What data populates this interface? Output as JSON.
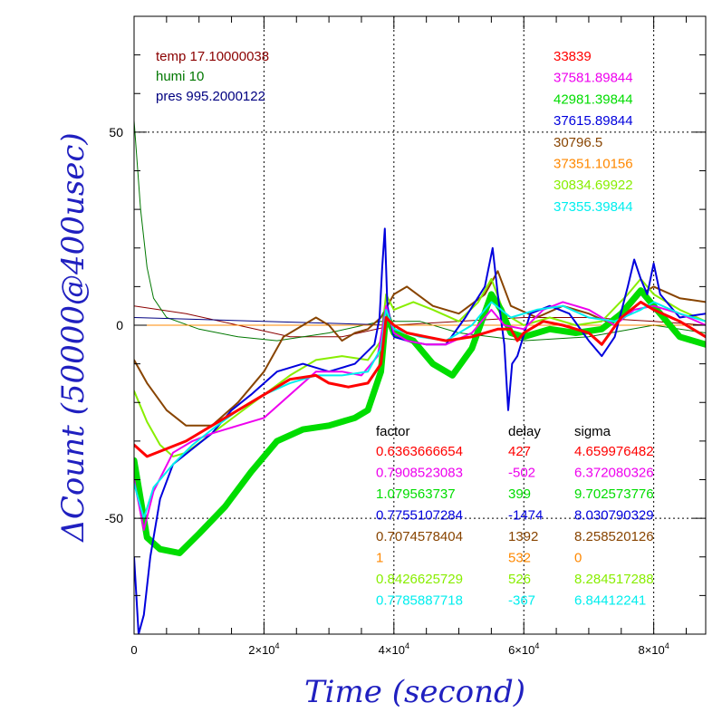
{
  "chart_data": {
    "type": "line",
    "xlabel": "Time (second)",
    "ylabel": "ΔCount (50000@400usec)",
    "xlim": [
      0,
      88000
    ],
    "ylim": [
      -80,
      80
    ],
    "x_ticks": [
      {
        "value": 0,
        "base": "0",
        "exp": ""
      },
      {
        "value": 20000,
        "base": "2×10",
        "exp": "4"
      },
      {
        "value": 40000,
        "base": "4×10",
        "exp": "4"
      },
      {
        "value": 60000,
        "base": "6×10",
        "exp": "4"
      },
      {
        "value": 80000,
        "base": "8×10",
        "exp": "4"
      }
    ],
    "y_ticks": [
      {
        "value": 50,
        "label": "50"
      },
      {
        "value": 0,
        "label": "0"
      },
      {
        "value": -50,
        "label": "-50"
      }
    ],
    "grid": true,
    "env_series": [
      {
        "label": "temp 17.10000038",
        "color": "#8b0000",
        "points": [
          [
            0,
            5
          ],
          [
            8000,
            3
          ],
          [
            16000,
            0
          ],
          [
            24000,
            -3
          ],
          [
            32000,
            -3
          ],
          [
            40000,
            0
          ],
          [
            50000,
            1
          ],
          [
            60000,
            2
          ],
          [
            70000,
            2
          ],
          [
            80000,
            1
          ],
          [
            88000,
            0
          ]
        ]
      },
      {
        "label": "humi 10",
        "color": "#007700",
        "points": [
          [
            0,
            53
          ],
          [
            1000,
            30
          ],
          [
            2000,
            15
          ],
          [
            3000,
            7
          ],
          [
            5000,
            2
          ],
          [
            10000,
            -1
          ],
          [
            16000,
            -3
          ],
          [
            22000,
            -4
          ],
          [
            30000,
            -2
          ],
          [
            38000,
            1
          ],
          [
            44000,
            1
          ],
          [
            50000,
            -2
          ],
          [
            60000,
            -4
          ],
          [
            70000,
            -3
          ],
          [
            80000,
            0
          ],
          [
            88000,
            -2
          ]
        ]
      },
      {
        "label": "pres 995.2000122",
        "color": "#000080",
        "points": [
          [
            0,
            2
          ],
          [
            20000,
            1
          ],
          [
            40000,
            0
          ],
          [
            60000,
            0
          ],
          [
            88000,
            0
          ]
        ]
      }
    ],
    "series_table_headers": [
      "factor",
      "delay",
      "sigma"
    ],
    "series": [
      {
        "name": "33839",
        "color": "#ff0000",
        "factor": "0.6363666654",
        "delay": "427",
        "sigma": "4.659976482",
        "width": 3,
        "points": [
          [
            0,
            -31
          ],
          [
            2000,
            -34
          ],
          [
            5000,
            -32
          ],
          [
            8000,
            -30
          ],
          [
            12000,
            -26
          ],
          [
            16000,
            -22
          ],
          [
            20000,
            -18
          ],
          [
            24000,
            -14
          ],
          [
            28000,
            -13
          ],
          [
            30000,
            -15
          ],
          [
            33000,
            -16
          ],
          [
            36000,
            -15
          ],
          [
            38000,
            -10
          ],
          [
            38800,
            2
          ],
          [
            40000,
            0
          ],
          [
            42000,
            -2
          ],
          [
            45000,
            -3
          ],
          [
            48000,
            -4
          ],
          [
            52000,
            -3
          ],
          [
            56000,
            -1
          ],
          [
            58000,
            -1
          ],
          [
            59000,
            -4
          ],
          [
            60000,
            -2
          ],
          [
            63000,
            1
          ],
          [
            66000,
            0
          ],
          [
            70000,
            -2
          ],
          [
            72000,
            -5
          ],
          [
            75000,
            2
          ],
          [
            78000,
            6
          ],
          [
            80000,
            4
          ],
          [
            84000,
            1
          ],
          [
            88000,
            -3
          ]
        ]
      },
      {
        "name": "37581.89844",
        "color": "#ee00ee",
        "factor": "0.7908523083",
        "delay": "-502",
        "sigma": "6.372080326",
        "width": 2,
        "points": [
          [
            0,
            -40
          ],
          [
            1500,
            -53
          ],
          [
            3000,
            -43
          ],
          [
            6000,
            -33
          ],
          [
            9000,
            -30
          ],
          [
            12000,
            -28
          ],
          [
            16000,
            -26
          ],
          [
            20000,
            -24
          ],
          [
            24000,
            -18
          ],
          [
            28000,
            -12
          ],
          [
            32000,
            -12
          ],
          [
            35000,
            -13
          ],
          [
            37500,
            -8
          ],
          [
            38800,
            5
          ],
          [
            40000,
            -2
          ],
          [
            42000,
            -4
          ],
          [
            45000,
            -5
          ],
          [
            48000,
            -5
          ],
          [
            52000,
            -2
          ],
          [
            55000,
            4
          ],
          [
            57000,
            0
          ],
          [
            60000,
            -1
          ],
          [
            63000,
            4
          ],
          [
            66000,
            6
          ],
          [
            70000,
            4
          ],
          [
            74000,
            0
          ],
          [
            77000,
            4
          ],
          [
            80000,
            5
          ],
          [
            84000,
            3
          ],
          [
            88000,
            0
          ]
        ]
      },
      {
        "name": "42981.39844",
        "color": "#00dd00",
        "factor": "1.079563737",
        "delay": "399",
        "sigma": "9.702573776",
        "width": 7,
        "points": [
          [
            0,
            -35
          ],
          [
            1000,
            -45
          ],
          [
            2000,
            -55
          ],
          [
            4000,
            -58
          ],
          [
            7000,
            -59
          ],
          [
            10000,
            -54
          ],
          [
            14000,
            -47
          ],
          [
            18000,
            -38
          ],
          [
            22000,
            -30
          ],
          [
            26000,
            -27
          ],
          [
            30000,
            -26
          ],
          [
            34000,
            -24
          ],
          [
            36000,
            -22
          ],
          [
            38000,
            -12
          ],
          [
            38800,
            3
          ],
          [
            40000,
            -2
          ],
          [
            43000,
            -4
          ],
          [
            46000,
            -10
          ],
          [
            49000,
            -13
          ],
          [
            52000,
            -6
          ],
          [
            55000,
            8
          ],
          [
            56500,
            4
          ],
          [
            58000,
            -2
          ],
          [
            60000,
            -3
          ],
          [
            64000,
            -1
          ],
          [
            68000,
            -2
          ],
          [
            72000,
            -1
          ],
          [
            75000,
            3
          ],
          [
            78000,
            9
          ],
          [
            80000,
            5
          ],
          [
            84000,
            -3
          ],
          [
            88000,
            -5
          ]
        ]
      },
      {
        "name": "37615.89844",
        "color": "#0000dd",
        "factor": "0.7755107284",
        "delay": "-1474",
        "sigma": "8.030790329",
        "width": 2,
        "points": [
          [
            0,
            -60
          ],
          [
            700,
            -80
          ],
          [
            1500,
            -75
          ],
          [
            2500,
            -60
          ],
          [
            4000,
            -45
          ],
          [
            6000,
            -36
          ],
          [
            9000,
            -32
          ],
          [
            12000,
            -28
          ],
          [
            15000,
            -22
          ],
          [
            18000,
            -18
          ],
          [
            22000,
            -12
          ],
          [
            26000,
            -10
          ],
          [
            30000,
            -12
          ],
          [
            34000,
            -10
          ],
          [
            37000,
            -5
          ],
          [
            37800,
            2
          ],
          [
            38200,
            15
          ],
          [
            38600,
            25
          ],
          [
            39000,
            5
          ],
          [
            40000,
            -3
          ],
          [
            42000,
            -4
          ],
          [
            45000,
            -5
          ],
          [
            48000,
            -5
          ],
          [
            51000,
            2
          ],
          [
            54000,
            10
          ],
          [
            55200,
            20
          ],
          [
            56000,
            8
          ],
          [
            57000,
            -5
          ],
          [
            57600,
            -22
          ],
          [
            58200,
            -10
          ],
          [
            59000,
            -8
          ],
          [
            61000,
            3
          ],
          [
            64000,
            5
          ],
          [
            67000,
            3
          ],
          [
            70000,
            -4
          ],
          [
            72000,
            -8
          ],
          [
            74000,
            -3
          ],
          [
            76000,
            10
          ],
          [
            77000,
            17
          ],
          [
            78000,
            12
          ],
          [
            79000,
            8
          ],
          [
            80000,
            16
          ],
          [
            81000,
            8
          ],
          [
            84000,
            2
          ],
          [
            88000,
            3
          ]
        ]
      },
      {
        "name": "30796.5",
        "color": "#884400",
        "factor": "0.7074578404",
        "delay": "1392",
        "sigma": "8.258520126",
        "width": 2,
        "points": [
          [
            0,
            -9
          ],
          [
            2000,
            -15
          ],
          [
            5000,
            -22
          ],
          [
            8000,
            -26
          ],
          [
            12000,
            -26
          ],
          [
            16000,
            -20
          ],
          [
            20000,
            -12
          ],
          [
            23000,
            -3
          ],
          [
            26000,
            0
          ],
          [
            28000,
            2
          ],
          [
            30000,
            0
          ],
          [
            32000,
            -4
          ],
          [
            34000,
            -2
          ],
          [
            36000,
            -1
          ],
          [
            38000,
            2
          ],
          [
            40000,
            8
          ],
          [
            42000,
            10
          ],
          [
            46000,
            5
          ],
          [
            50000,
            3
          ],
          [
            54000,
            8
          ],
          [
            56000,
            14
          ],
          [
            58000,
            5
          ],
          [
            62000,
            2
          ],
          [
            66000,
            5
          ],
          [
            70000,
            3
          ],
          [
            74000,
            0
          ],
          [
            78000,
            8
          ],
          [
            80000,
            10
          ],
          [
            84000,
            7
          ],
          [
            88000,
            6
          ]
        ]
      },
      {
        "name": "37351.10156",
        "color": "#ff8800",
        "factor": "1",
        "delay": "532",
        "sigma": "0",
        "width": 1,
        "points": [
          [
            0,
            0
          ],
          [
            88000,
            0
          ]
        ]
      },
      {
        "name": "30834.69922",
        "color": "#88ee00",
        "factor": "0.8426625729",
        "delay": "526",
        "sigma": "8.284517288",
        "width": 2,
        "points": [
          [
            0,
            -17
          ],
          [
            2000,
            -25
          ],
          [
            4000,
            -31
          ],
          [
            6000,
            -34
          ],
          [
            8000,
            -33
          ],
          [
            12000,
            -28
          ],
          [
            16000,
            -23
          ],
          [
            20000,
            -18
          ],
          [
            24000,
            -13
          ],
          [
            28000,
            -9
          ],
          [
            32000,
            -8
          ],
          [
            36000,
            -9
          ],
          [
            38000,
            -4
          ],
          [
            38800,
            8
          ],
          [
            40000,
            4
          ],
          [
            43000,
            6
          ],
          [
            46000,
            4
          ],
          [
            50000,
            1
          ],
          [
            53000,
            6
          ],
          [
            55000,
            12
          ],
          [
            57000,
            3
          ],
          [
            60000,
            0
          ],
          [
            64000,
            2
          ],
          [
            68000,
            0
          ],
          [
            72000,
            1
          ],
          [
            76000,
            8
          ],
          [
            78000,
            12
          ],
          [
            80000,
            8
          ],
          [
            84000,
            4
          ],
          [
            88000,
            1
          ]
        ]
      },
      {
        "name": "37355.39844",
        "color": "#00eeee",
        "factor": "0.7785887718",
        "delay": "-367",
        "sigma": "6.84412241",
        "width": 2,
        "points": [
          [
            0,
            -41
          ],
          [
            1500,
            -50
          ],
          [
            3000,
            -42
          ],
          [
            6000,
            -36
          ],
          [
            9000,
            -31
          ],
          [
            12000,
            -27
          ],
          [
            16000,
            -22
          ],
          [
            20000,
            -18
          ],
          [
            24000,
            -15
          ],
          [
            28000,
            -13
          ],
          [
            32000,
            -13
          ],
          [
            36000,
            -12
          ],
          [
            38000,
            -6
          ],
          [
            38800,
            4
          ],
          [
            40000,
            -1
          ],
          [
            44000,
            -3
          ],
          [
            48000,
            -4
          ],
          [
            52000,
            0
          ],
          [
            55000,
            6
          ],
          [
            58000,
            2
          ],
          [
            62000,
            4
          ],
          [
            66000,
            5
          ],
          [
            70000,
            2
          ],
          [
            74000,
            1
          ],
          [
            78000,
            4
          ],
          [
            80000,
            6
          ],
          [
            84000,
            3
          ],
          [
            88000,
            1
          ]
        ]
      }
    ]
  }
}
